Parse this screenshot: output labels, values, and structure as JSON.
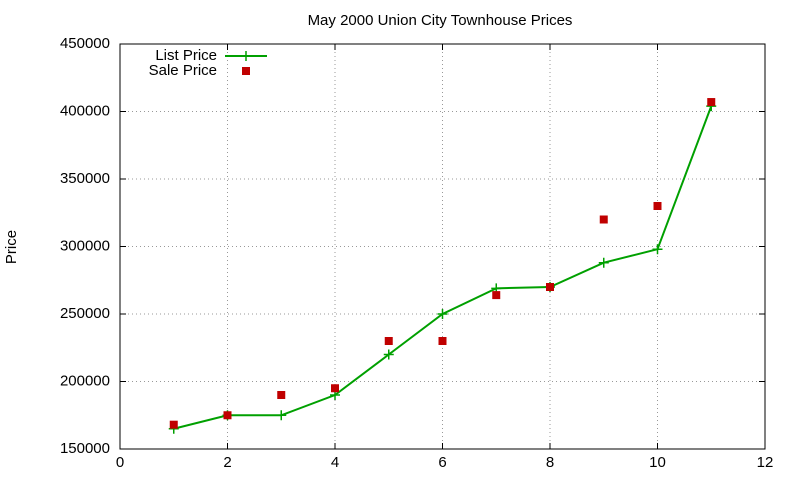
{
  "chart_data": {
    "type": "line",
    "title": "May 2000 Union City Townhouse Prices",
    "y_label": "Price",
    "x": [
      1,
      2,
      3,
      4,
      5,
      6,
      7,
      8,
      9,
      10,
      11
    ],
    "series": [
      {
        "name": "List Price",
        "color": "#00a000",
        "line": true,
        "marker": "plus",
        "values": [
          165000,
          175000,
          175000,
          190000,
          220000,
          250000,
          269000,
          270000,
          288000,
          298000,
          404000
        ]
      },
      {
        "name": "Sale Price",
        "color": "#c00000",
        "line": false,
        "marker": "square",
        "values": [
          168000,
          175000,
          190000,
          195000,
          230000,
          230000,
          264000,
          270000,
          320000,
          330000,
          407000
        ]
      }
    ],
    "xlim": [
      0,
      12
    ],
    "xticks": [
      0,
      2,
      4,
      6,
      8,
      10,
      12
    ],
    "ylim": [
      150000,
      450000
    ],
    "yticks": [
      150000,
      200000,
      250000,
      300000,
      350000,
      400000,
      450000
    ],
    "grid": true,
    "legend": "top-left"
  }
}
